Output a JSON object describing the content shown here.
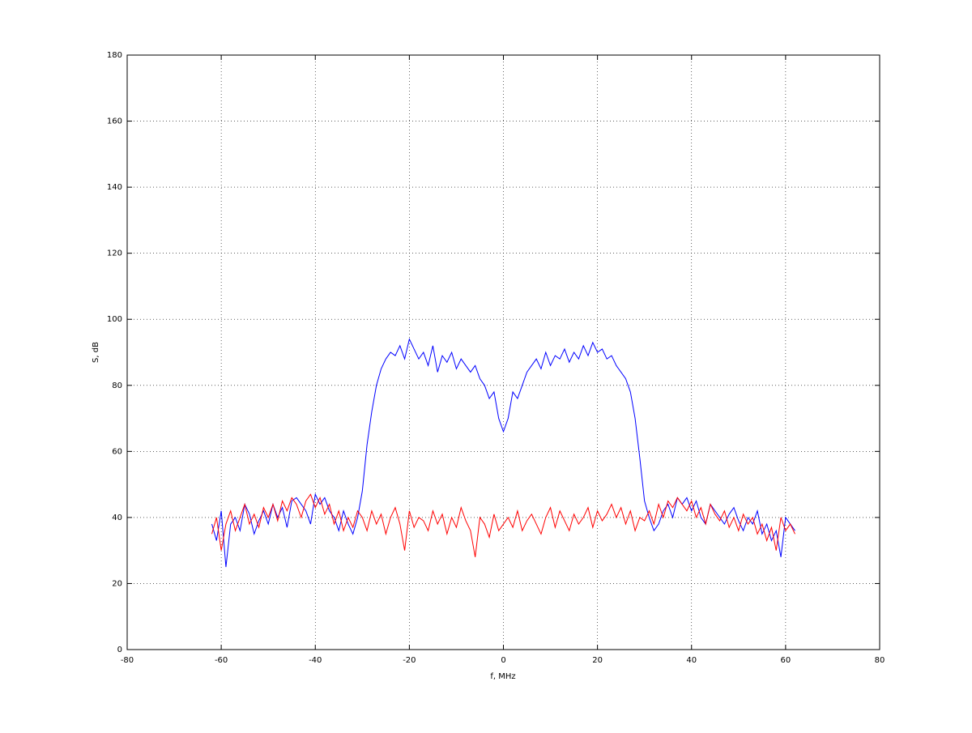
{
  "chart_data": {
    "type": "line",
    "xlabel": "f, MHz",
    "ylabel": "S, dB",
    "x": [
      -62,
      -61,
      -60,
      -59,
      -58,
      -57,
      -56,
      -55,
      -54,
      -53,
      -52,
      -51,
      -50,
      -49,
      -48,
      -47,
      -46,
      -45,
      -44,
      -43,
      -42,
      -41,
      -40,
      -39,
      -38,
      -37,
      -36,
      -35,
      -34,
      -33,
      -32,
      -31,
      -30,
      -29,
      -28,
      -27,
      -26,
      -25,
      -24,
      -23,
      -22,
      -21,
      -20,
      -19,
      -18,
      -17,
      -16,
      -15,
      -14,
      -13,
      -12,
      -11,
      -10,
      -9,
      -8,
      -7,
      -6,
      -5,
      -4,
      -3,
      -2,
      -1,
      0,
      1,
      2,
      3,
      4,
      5,
      6,
      7,
      8,
      9,
      10,
      11,
      12,
      13,
      14,
      15,
      16,
      17,
      18,
      19,
      20,
      21,
      22,
      23,
      24,
      25,
      26,
      27,
      28,
      29,
      30,
      31,
      32,
      33,
      34,
      35,
      36,
      37,
      38,
      39,
      40,
      41,
      42,
      43,
      44,
      45,
      46,
      47,
      48,
      49,
      50,
      51,
      52,
      53,
      54,
      55,
      56,
      57,
      58,
      59,
      60,
      61,
      62
    ],
    "series": [
      {
        "color": "#0000ff",
        "values": [
          38,
          33,
          42,
          25,
          38,
          40,
          36,
          44,
          41,
          35,
          39,
          42,
          38,
          44,
          40,
          43,
          37,
          45,
          46,
          44,
          42,
          38,
          47,
          44,
          46,
          42,
          40,
          36,
          42,
          38,
          35,
          40,
          48,
          62,
          72,
          80,
          85,
          88,
          90,
          89,
          92,
          88,
          94,
          91,
          88,
          90,
          86,
          92,
          84,
          89,
          87,
          90,
          85,
          88,
          86,
          84,
          86,
          82,
          80,
          76,
          78,
          70,
          66,
          70,
          78,
          76,
          80,
          84,
          86,
          88,
          85,
          90,
          86,
          89,
          88,
          91,
          87,
          90,
          88,
          92,
          89,
          93,
          90,
          91,
          88,
          89,
          86,
          84,
          82,
          78,
          70,
          58,
          45,
          40,
          36,
          38,
          42,
          44,
          40,
          46,
          44,
          46,
          42,
          45,
          40,
          38,
          44,
          42,
          40,
          38,
          41,
          43,
          39,
          36,
          40,
          38,
          42,
          35,
          38,
          33,
          36,
          28,
          40,
          38,
          36
        ]
      },
      {
        "color": "#ff0000",
        "values": [
          35,
          40,
          30,
          38,
          42,
          36,
          40,
          44,
          38,
          41,
          37,
          43,
          40,
          44,
          39,
          45,
          42,
          46,
          44,
          40,
          45,
          47,
          43,
          46,
          41,
          44,
          38,
          42,
          36,
          40,
          37,
          42,
          40,
          36,
          42,
          38,
          41,
          35,
          40,
          43,
          38,
          30,
          42,
          37,
          40,
          39,
          36,
          42,
          38,
          41,
          35,
          40,
          37,
          43,
          39,
          36,
          28,
          40,
          38,
          34,
          41,
          36,
          38,
          40,
          37,
          42,
          36,
          39,
          41,
          38,
          35,
          40,
          43,
          37,
          42,
          39,
          36,
          41,
          38,
          40,
          43,
          37,
          42,
          39,
          41,
          44,
          40,
          43,
          38,
          42,
          36,
          40,
          39,
          42,
          38,
          44,
          40,
          45,
          43,
          46,
          44,
          42,
          45,
          40,
          43,
          38,
          44,
          41,
          39,
          42,
          37,
          40,
          36,
          41,
          38,
          40,
          35,
          38,
          33,
          37,
          30,
          40,
          36,
          38,
          35
        ]
      }
    ],
    "xlim": [
      -80,
      80
    ],
    "xticks": [
      -80,
      -60,
      -40,
      -20,
      0,
      20,
      40,
      60,
      80
    ],
    "ylim": [
      0,
      180
    ],
    "yticks": [
      0,
      20,
      40,
      60,
      80,
      100,
      120,
      140,
      160,
      180
    ],
    "grid": true
  }
}
